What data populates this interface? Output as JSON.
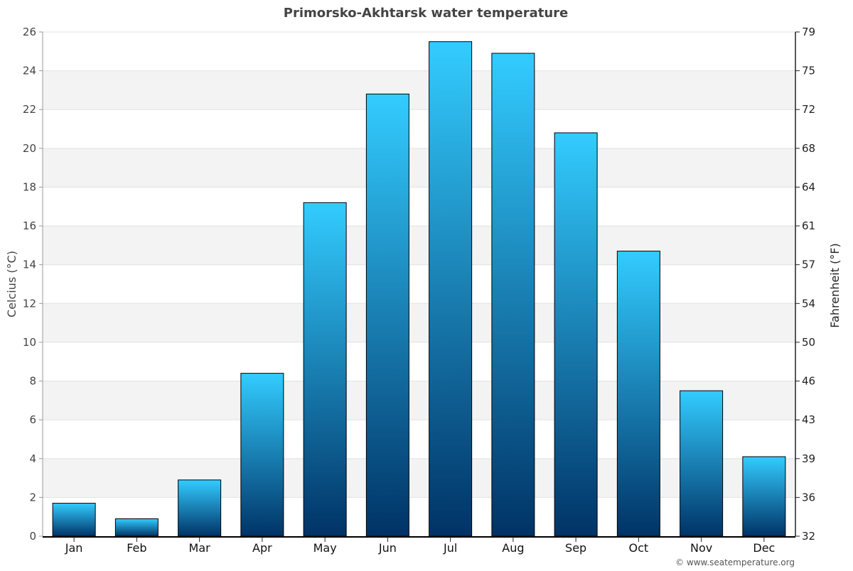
{
  "chart_data": {
    "type": "bar",
    "title": "Primorsko-Akhtarsk water temperature",
    "ylabel": "Celcius (°C)",
    "y2label": "Fahrenheit (°F)",
    "ylim": [
      0,
      26
    ],
    "yticks": [
      0,
      2,
      4,
      6,
      8,
      10,
      12,
      14,
      16,
      18,
      20,
      22,
      24,
      26
    ],
    "y2ticks": [
      "32",
      "36",
      "39",
      "43",
      "46",
      "50",
      "54",
      "57",
      "61",
      "64",
      "68",
      "72",
      "75",
      "79"
    ],
    "categories": [
      "Jan",
      "Feb",
      "Mar",
      "Apr",
      "May",
      "Jun",
      "Jul",
      "Aug",
      "Sep",
      "Oct",
      "Nov",
      "Dec"
    ],
    "values": [
      1.7,
      0.9,
      2.9,
      8.4,
      17.2,
      22.8,
      25.5,
      24.9,
      20.8,
      14.7,
      7.5,
      4.1
    ],
    "grid": true,
    "legend": "none",
    "colors": {
      "bar_top": "#33ccff",
      "bar_bottom": "#003366",
      "bar_stroke": "#000000",
      "band": "#f3f3f3",
      "text": "#444444"
    }
  },
  "credit": "© www.seatemperature.org"
}
